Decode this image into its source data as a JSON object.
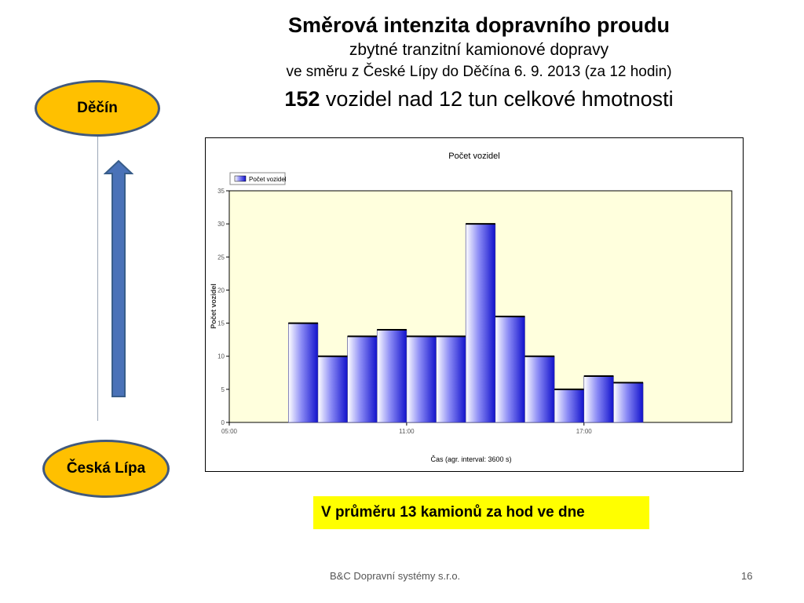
{
  "title": {
    "line1": "Směrová intenzita dopravního proudu",
    "line2": "zbytné tranzitní kamionové dopravy",
    "line3": "ve směru z České Lípy do Děčína  6. 9. 2013 (za 12 hodin)",
    "line4_number": "152",
    "line4_rest": " vozidel nad 12 tun celkové hmotnosti"
  },
  "route": {
    "top_city": "Děčín",
    "bottom_city": "Česká Lípa",
    "arrow_color": "#4a72b8",
    "city_color": "#ffc000"
  },
  "summary": "V průměru 13 kamionů za hod ve dne",
  "footer": {
    "company": "B&C Dopravní systémy s.r.o.",
    "page": "16"
  },
  "chart_data": {
    "type": "bar",
    "title": "Počet vozidel",
    "legend": "Počet vozidel",
    "legend_position": "top-left",
    "xlabel": "Čas (agr. interval: 3600 s)",
    "ylabel": "Počet vozidel",
    "ylim": [
      0,
      35
    ],
    "yticks": [
      "0",
      "5",
      "10",
      "15",
      "20",
      "25",
      "30",
      "35"
    ],
    "xlim_hours": [
      5,
      22
    ],
    "xticks": [
      {
        "hour": 5,
        "label": "05:00"
      },
      {
        "hour": 11,
        "label": "11:00"
      },
      {
        "hour": 17,
        "label": "17:00"
      }
    ],
    "start_hours": [
      7,
      8,
      9,
      10,
      11,
      12,
      13,
      14,
      15,
      16,
      17,
      18
    ],
    "values": [
      15,
      10,
      13,
      14,
      13,
      13,
      30,
      16,
      10,
      5,
      7,
      6
    ],
    "grid": false,
    "plot_background": "#ffffdd"
  }
}
